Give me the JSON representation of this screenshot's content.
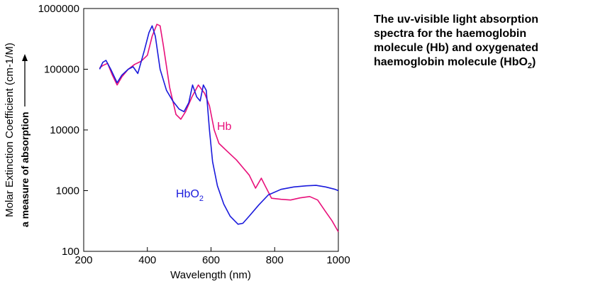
{
  "caption": {
    "line1": "The uv-visible light absorption",
    "line2": "spectra for the haemoglobin",
    "line3": "molecule (Hb) and oxygenated",
    "line4_main": "haemoglobin molecule (HbO",
    "line4_sub": "2",
    "line4_end": ")"
  },
  "chart_data": {
    "type": "line",
    "xlabel": "Wavelength (nm)",
    "ylabel": "Molar Extinction Coefficient (cm-1/M)",
    "ylabel_note": "a measure of absorption",
    "xlim": [
      200,
      1000
    ],
    "ylim": [
      100,
      1000000
    ],
    "yscale": "log",
    "grid": false,
    "x_ticks": [
      "200",
      "400",
      "600",
      "800",
      "1000"
    ],
    "y_ticks": [
      "100",
      "1000",
      "10000",
      "100000",
      "1000000"
    ],
    "series": [
      {
        "name": "Hb",
        "color": "#e8107a",
        "points": [
          [
            250,
            105000
          ],
          [
            260,
            115000
          ],
          [
            275,
            125000
          ],
          [
            290,
            80000
          ],
          [
            305,
            55000
          ],
          [
            320,
            75000
          ],
          [
            340,
            100000
          ],
          [
            360,
            120000
          ],
          [
            380,
            135000
          ],
          [
            400,
            170000
          ],
          [
            415,
            350000
          ],
          [
            430,
            550000
          ],
          [
            440,
            520000
          ],
          [
            450,
            250000
          ],
          [
            470,
            50000
          ],
          [
            490,
            18000
          ],
          [
            505,
            15000
          ],
          [
            520,
            20000
          ],
          [
            540,
            35000
          ],
          [
            560,
            55000
          ],
          [
            580,
            40000
          ],
          [
            595,
            25000
          ],
          [
            610,
            10000
          ],
          [
            625,
            6000
          ],
          [
            650,
            4500
          ],
          [
            680,
            3200
          ],
          [
            700,
            2400
          ],
          [
            720,
            1800
          ],
          [
            740,
            1100
          ],
          [
            758,
            1600
          ],
          [
            770,
            1200
          ],
          [
            790,
            750
          ],
          [
            820,
            720
          ],
          [
            850,
            700
          ],
          [
            880,
            760
          ],
          [
            910,
            800
          ],
          [
            935,
            700
          ],
          [
            960,
            450
          ],
          [
            980,
            320
          ],
          [
            1000,
            210
          ]
        ]
      },
      {
        "name": "HbO",
        "name_sub": "2",
        "color": "#1a1adc",
        "points": [
          [
            250,
            100000
          ],
          [
            260,
            130000
          ],
          [
            270,
            140000
          ],
          [
            285,
            100000
          ],
          [
            305,
            60000
          ],
          [
            320,
            80000
          ],
          [
            340,
            100000
          ],
          [
            355,
            110000
          ],
          [
            370,
            85000
          ],
          [
            390,
            200000
          ],
          [
            405,
            400000
          ],
          [
            415,
            520000
          ],
          [
            425,
            350000
          ],
          [
            440,
            100000
          ],
          [
            460,
            45000
          ],
          [
            480,
            30000
          ],
          [
            500,
            22000
          ],
          [
            515,
            20000
          ],
          [
            530,
            28000
          ],
          [
            542,
            55000
          ],
          [
            555,
            35000
          ],
          [
            566,
            30000
          ],
          [
            576,
            55000
          ],
          [
            585,
            45000
          ],
          [
            595,
            10000
          ],
          [
            605,
            3000
          ],
          [
            620,
            1200
          ],
          [
            640,
            600
          ],
          [
            660,
            380
          ],
          [
            685,
            280
          ],
          [
            700,
            290
          ],
          [
            720,
            380
          ],
          [
            750,
            580
          ],
          [
            780,
            850
          ],
          [
            820,
            1050
          ],
          [
            860,
            1150
          ],
          [
            900,
            1200
          ],
          [
            930,
            1220
          ],
          [
            960,
            1150
          ],
          [
            990,
            1050
          ],
          [
            1000,
            1000
          ]
        ]
      }
    ]
  }
}
